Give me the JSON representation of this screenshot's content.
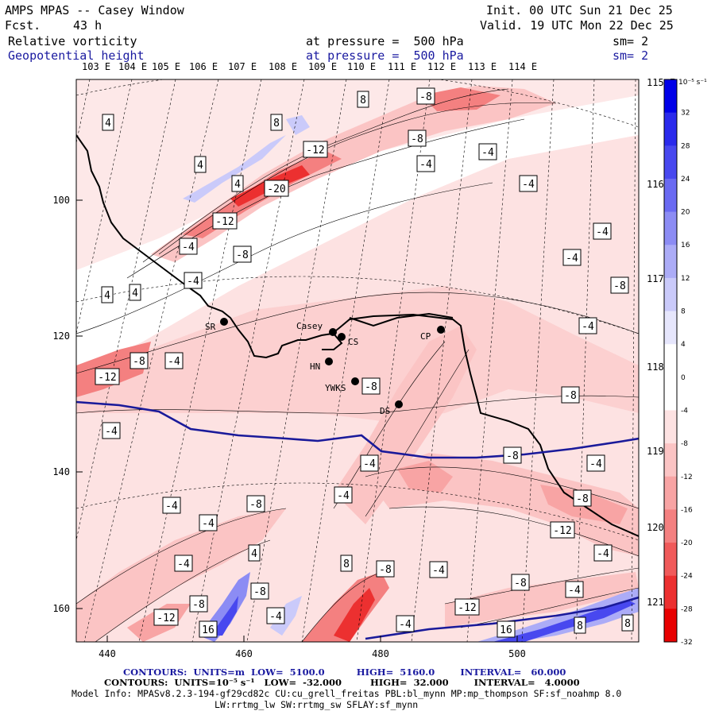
{
  "header": {
    "title": "AMPS MPAS -- Casey Window",
    "fcst_label": "Fcst.",
    "fcst_value": "43 h",
    "field1": "Relative vorticity",
    "field2": "Geopotential height",
    "init": "Init. 00 UTC Sun 21 Dec 25",
    "valid": "Valid. 19 UTC Mon 22 Dec 25",
    "pressure1": "at pressure =  500 hPa",
    "pressure2": "at pressure =  500 hPa",
    "sm1": "sm= 2",
    "sm2": "sm= 2"
  },
  "axes": {
    "top_lon_labels": [
      "103 E",
      "104 E",
      "105 E",
      "106 E",
      "107 E",
      "108 E",
      "109 E",
      "110 E",
      "111 E",
      "112 E",
      "113 E",
      "114 E"
    ],
    "right_lon_labels": [
      "115 E",
      "116 E",
      "117 E",
      "118 E",
      "119 E",
      "120 E",
      "121 E"
    ],
    "y_ticks": [
      "100",
      "120",
      "140",
      "160"
    ],
    "x_ticks": [
      "440",
      "460",
      "480",
      "500"
    ]
  },
  "colorbar": {
    "unit_label": "10⁻⁵ s⁻¹",
    "ticks": [
      "32",
      "28",
      "24",
      "20",
      "16",
      "12",
      "8",
      "4",
      "0",
      "-4",
      "-8",
      "-12",
      "-16",
      "-20",
      "-24",
      "-28",
      "-32"
    ],
    "colors": [
      "#0000e8",
      "#2a2aec",
      "#4848ef",
      "#6a6af2",
      "#8c8cf4",
      "#acacf7",
      "#cacafa",
      "#e6e6fc",
      "#ffffff",
      "#ffffff",
      "#fde2e2",
      "#fbc4c4",
      "#f8a4a4",
      "#f48080",
      "#f05a5a",
      "#ec3030",
      "#e80000"
    ]
  },
  "stations": [
    {
      "name": "Casey"
    },
    {
      "name": "CS"
    },
    {
      "name": "SR"
    },
    {
      "name": "HN"
    },
    {
      "name": "YWKS"
    },
    {
      "name": "CP"
    },
    {
      "name": "DS"
    }
  ],
  "contour_labels": [
    "4",
    "8",
    "-8",
    "8",
    "-4",
    "-8",
    "-4",
    "-12",
    "4",
    "4",
    "-20",
    "-4",
    "-12",
    "-4",
    "-8",
    "-4",
    "-4",
    "-4",
    "-8",
    "4",
    "-4",
    "-8",
    "-8",
    "-12",
    "-8",
    "-4",
    "-4",
    "-8",
    "-4",
    "-4",
    "-4",
    "-8",
    "-4",
    "-4",
    "-8",
    "-12",
    "-4",
    "-12",
    "4",
    "-4",
    "8",
    "-8",
    "-4",
    "-8",
    "-8",
    "-12",
    "-8",
    "-4",
    "-4",
    "-4",
    "16",
    "4",
    "16",
    "8",
    "8"
  ],
  "footer": {
    "line1": "CONTOURS:  UNITS=m  LOW=  5100.0          HIGH=  5160.0        INTERVAL=   60.000",
    "line2": "CONTOURS:  UNITS=10⁻⁵ s⁻¹   LOW=  -32.000         HIGH=  32.000        INTERVAL=   4.0000",
    "line3": "Model Info: MPASv8.2.3-194-gf29cd82c CU:cu_grell_freitas PBL:bl_mynn MP:mp_thompson SF:sf_noahmp 8.0",
    "line4": "LW:rrtmg_lw SW:rrtmg_sw SFLAY:sf_mynn"
  }
}
